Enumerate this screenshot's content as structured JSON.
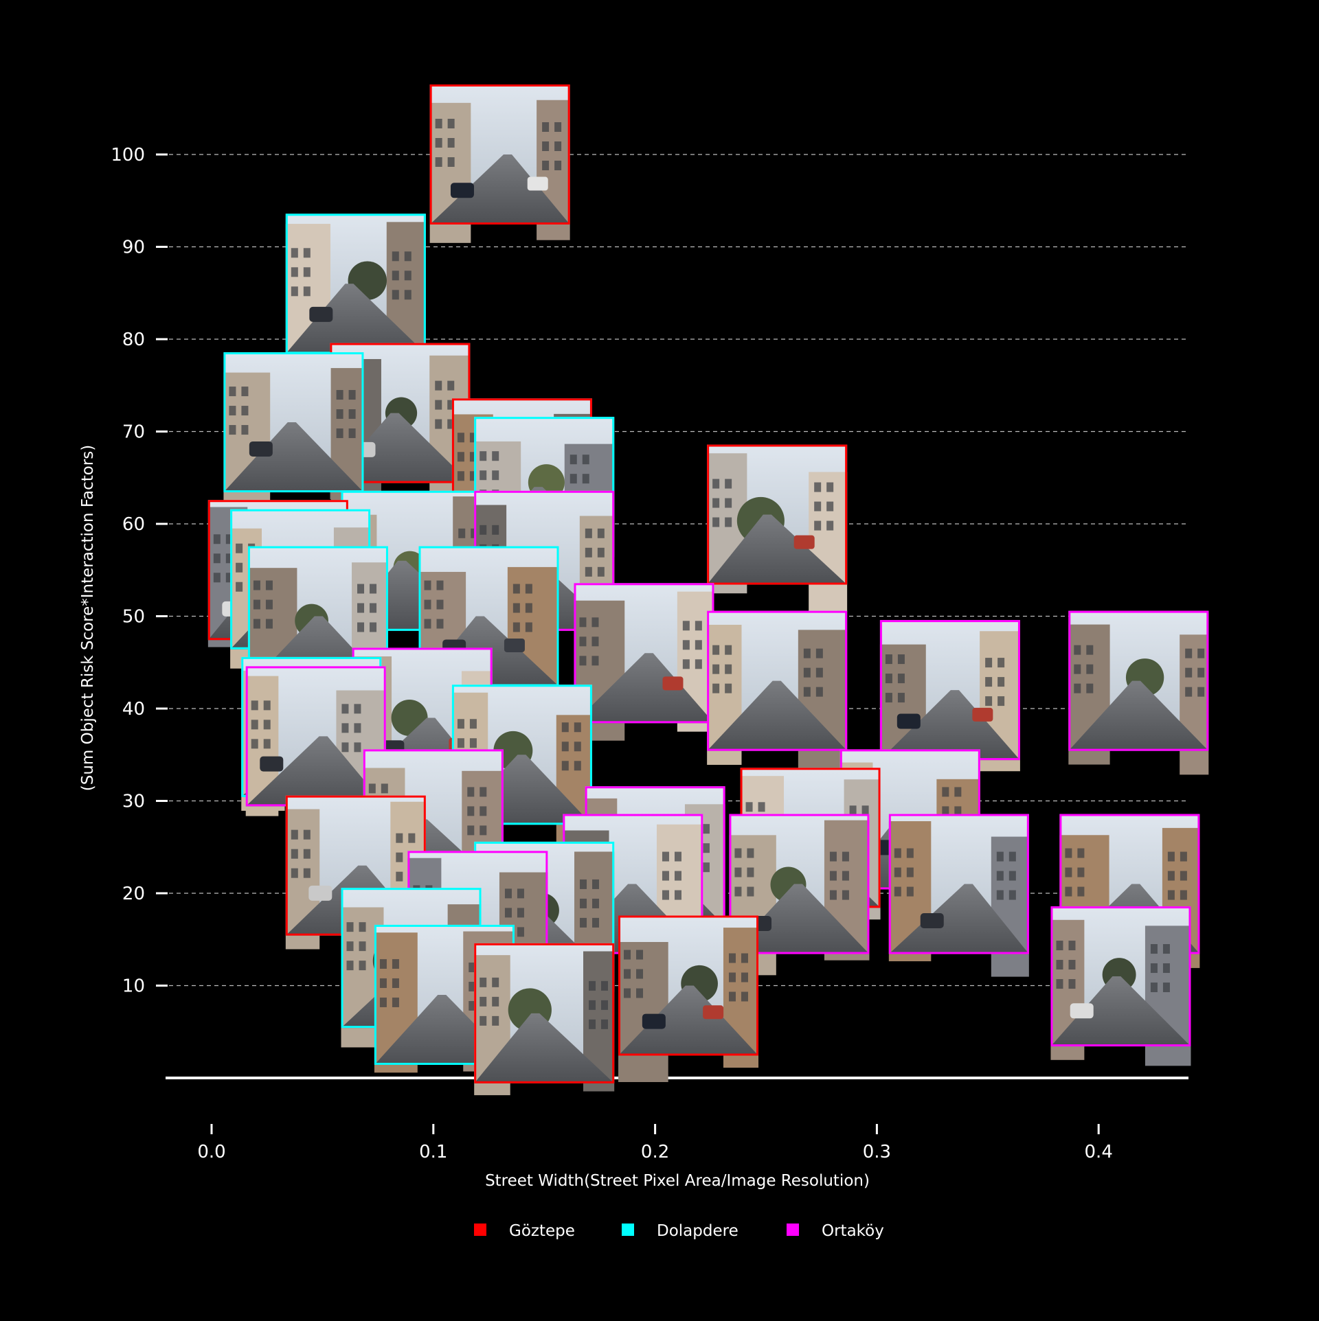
{
  "chart_data": {
    "type": "scatter",
    "marker": "street-view-thumbnail",
    "xlabel": "Street Width(Street Pixel Area/Image Resolution)",
    "ylabel": "(Sum Object Risk Score*Interaction Factors)",
    "xlim": [
      -0.025,
      0.445
    ],
    "ylim": [
      0,
      110
    ],
    "x_ticks": [
      0.0,
      0.1,
      0.2,
      0.3,
      0.4
    ],
    "x_tick_labels": [
      "0.0",
      "0.1",
      "0.2",
      "0.3",
      "0.4"
    ],
    "y_ticks": [
      10,
      20,
      30,
      40,
      50,
      60,
      70,
      80,
      90,
      100
    ],
    "y_tick_labels": [
      "10",
      "20",
      "30",
      "40",
      "50",
      "60",
      "70",
      "80",
      "90",
      "100"
    ],
    "grid": "horizontal dashed",
    "legend_position": "bottom",
    "series": [
      {
        "name": "Göztepe",
        "color": "#ff0000",
        "points": [
          {
            "x": 0.13,
            "y": 100
          },
          {
            "x": 0.085,
            "y": 72
          },
          {
            "x": 0.14,
            "y": 66
          },
          {
            "x": 0.03,
            "y": 55
          },
          {
            "x": 0.255,
            "y": 61
          },
          {
            "x": 0.065,
            "y": 23
          },
          {
            "x": 0.15,
            "y": 7
          },
          {
            "x": 0.215,
            "y": 10
          },
          {
            "x": 0.27,
            "y": 26
          }
        ]
      },
      {
        "name": "Dolapdere",
        "color": "#00ffff",
        "points": [
          {
            "x": 0.065,
            "y": 86
          },
          {
            "x": 0.037,
            "y": 71
          },
          {
            "x": 0.15,
            "y": 64
          },
          {
            "x": 0.04,
            "y": 54
          },
          {
            "x": 0.09,
            "y": 56
          },
          {
            "x": 0.125,
            "y": 50
          },
          {
            "x": 0.048,
            "y": 50
          },
          {
            "x": 0.045,
            "y": 38
          },
          {
            "x": 0.14,
            "y": 35
          },
          {
            "x": 0.09,
            "y": 13
          },
          {
            "x": 0.105,
            "y": 9
          },
          {
            "x": 0.15,
            "y": 18
          }
        ]
      },
      {
        "name": "Ortaköy",
        "color": "#ff00ff",
        "points": [
          {
            "x": 0.15,
            "y": 56
          },
          {
            "x": 0.195,
            "y": 46
          },
          {
            "x": 0.255,
            "y": 43
          },
          {
            "x": 0.333,
            "y": 42
          },
          {
            "x": 0.418,
            "y": 43
          },
          {
            "x": 0.047,
            "y": 37
          },
          {
            "x": 0.095,
            "y": 39
          },
          {
            "x": 0.1,
            "y": 28
          },
          {
            "x": 0.315,
            "y": 28
          },
          {
            "x": 0.2,
            "y": 24
          },
          {
            "x": 0.19,
            "y": 21
          },
          {
            "x": 0.12,
            "y": 17
          },
          {
            "x": 0.265,
            "y": 21
          },
          {
            "x": 0.337,
            "y": 21
          },
          {
            "x": 0.414,
            "y": 21
          },
          {
            "x": 0.41,
            "y": 11
          }
        ]
      }
    ]
  },
  "legend": [
    {
      "label": "Göztepe",
      "color": "#ff0000"
    },
    {
      "label": "Dolapdere",
      "color": "#00ffff"
    },
    {
      "label": "Ortaköy",
      "color": "#ff00ff"
    }
  ]
}
